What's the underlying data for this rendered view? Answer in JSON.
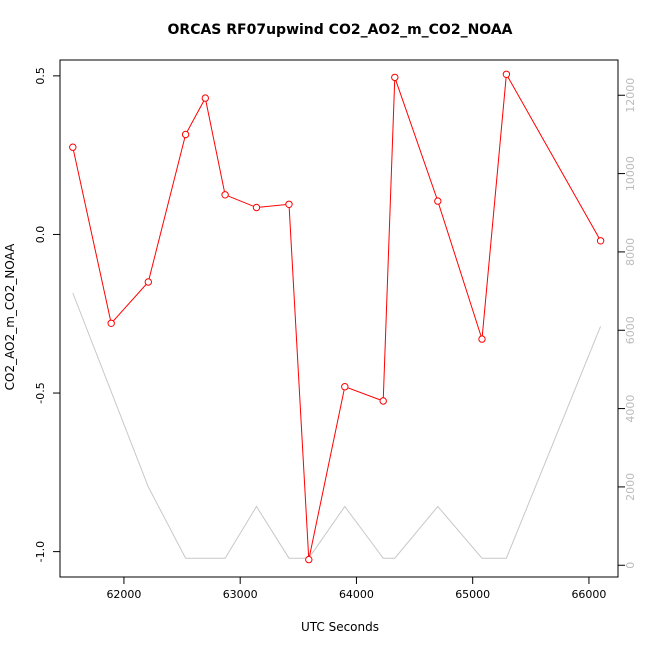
{
  "chart_data": {
    "type": "line",
    "title": "ORCAS RF07upwind CO2_AO2_m_CO2_NOAA",
    "xlabel": "UTC Seconds",
    "ylabel": "CO2_AO2_m_CO2_NOAA",
    "y2label": "",
    "xlim": [
      61450,
      66250
    ],
    "ylim": [
      -1.08,
      0.55
    ],
    "y2lim": [
      -300,
      12900
    ],
    "x_ticks": [
      62000,
      63000,
      64000,
      65000,
      66000
    ],
    "y_ticks": [
      -1.0,
      -0.5,
      0.0,
      0.5
    ],
    "y_tick_labels": [
      "-1.0",
      "-0.5",
      "0.0",
      "0.5"
    ],
    "y2_ticks": [
      0,
      2000,
      4000,
      6000,
      8000,
      10000,
      12000
    ],
    "grid": false,
    "series": [
      {
        "color": "#ff0000",
        "axis": "left",
        "markers": true,
        "x": [
          61560,
          61890,
          62210,
          62530,
          62700,
          62870,
          63140,
          63420,
          63590,
          63900,
          64230,
          64330,
          64700,
          65080,
          65290,
          66100
        ],
        "y": [
          0.275,
          -0.28,
          -0.15,
          0.315,
          0.43,
          0.125,
          0.085,
          0.095,
          -1.025,
          -0.48,
          -0.525,
          0.495,
          0.105,
          -0.33,
          0.505,
          -0.02
        ]
      },
      {
        "color": "#c8c8c8",
        "axis": "right",
        "markers": false,
        "x": [
          61560,
          62210,
          62530,
          62870,
          63140,
          63420,
          63590,
          63900,
          64230,
          64330,
          64700,
          65080,
          65290,
          66100
        ],
        "y": [
          6950,
          2000,
          180,
          180,
          1500,
          180,
          180,
          1500,
          180,
          180,
          1500,
          180,
          180,
          6100
        ]
      }
    ]
  }
}
